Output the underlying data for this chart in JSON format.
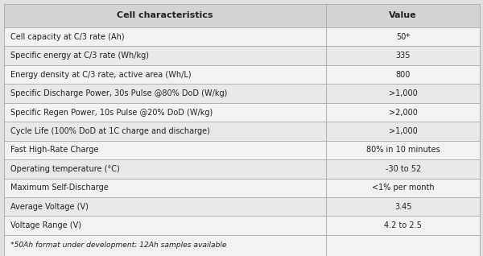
{
  "title_left": "Cell characteristics",
  "title_right": "Value",
  "rows": [
    [
      "Cell capacity at C/3 rate (Ah)",
      "50*"
    ],
    [
      "Specific energy at C/3 rate (Wh/kg)",
      "335"
    ],
    [
      "Energy density at C/3 rate, active area (Wh/L)",
      "800"
    ],
    [
      "Specific Discharge Power, 30s Pulse @80% DoD (W/kg)",
      ">1,000"
    ],
    [
      "Specific Regen Power, 10s Pulse @20% DoD (W/kg)",
      ">2,000"
    ],
    [
      "Cycle Life (100% DoD at 1C charge and discharge)",
      ">1,000"
    ],
    [
      "Fast High-Rate Charge",
      "80% in 10 minutes"
    ],
    [
      "Operating temperature (°C)",
      "-30 to 52"
    ],
    [
      "Maximum Self-Discharge",
      "<1% per month"
    ],
    [
      "Average Voltage (V)",
      "3.45"
    ],
    [
      "Voltage Range (V)",
      "4.2 to 2.5"
    ]
  ],
  "footnote": "*50Ah format under development; 12Ah samples available",
  "bg_color": "#e0e0e0",
  "header_bg": "#d4d4d4",
  "row_bg_light": "#f2f2f2",
  "row_bg_mid": "#e8e8e8",
  "border_color": "#b0b0b0",
  "text_color": "#222222",
  "col_split": 0.675
}
